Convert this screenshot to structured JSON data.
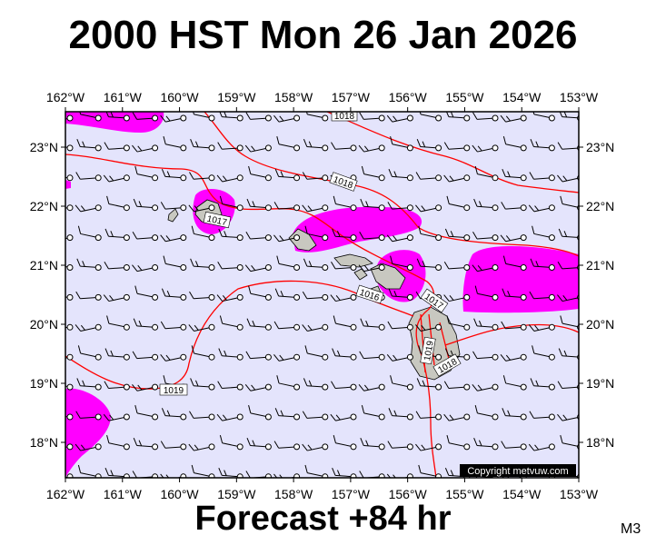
{
  "title": "2000 HST Mon 26 Jan 2026",
  "footer": "Forecast +84 hr",
  "model_tag": "M3",
  "copyright": "Copyright metvuw.com",
  "colors": {
    "ocean": "#e4e4fc",
    "rain": "#ff00ff",
    "isobar": "#ff0000",
    "land": "#c8c8c0"
  },
  "map": {
    "lon_range": [
      -162,
      -153
    ],
    "lat_range": [
      17.4,
      23.6
    ],
    "lon_ticks": [
      "162°W",
      "161°W",
      "160°W",
      "159°W",
      "158°W",
      "157°W",
      "156°W",
      "155°W",
      "154°W",
      "153°W"
    ],
    "lat_ticks": [
      "18°N",
      "19°N",
      "20°N",
      "21°N",
      "22°N",
      "23°N"
    ],
    "lat_tick_values": [
      18,
      19,
      20,
      21,
      22,
      23
    ]
  },
  "isobar_labels": [
    "1018",
    "1018",
    "1017",
    "1016",
    "1017",
    "1019",
    "1018",
    "1019"
  ]
}
